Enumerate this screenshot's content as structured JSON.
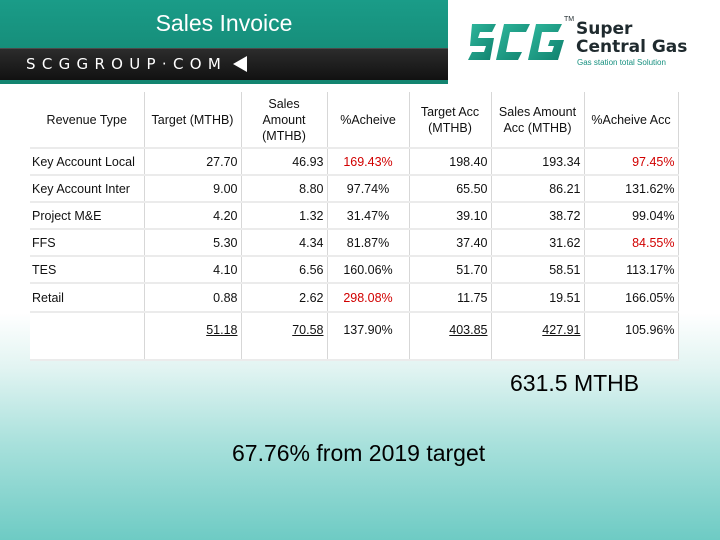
{
  "header": {
    "title": "Sales Invoice",
    "brand": "SCGGROUP·COM",
    "accent": "#1a9c88"
  },
  "logo": {
    "mark": "SCG",
    "tm": "TM",
    "name_line1": "Super",
    "name_line2": "Central Gas",
    "tagline": "Gas station total Solution"
  },
  "table": {
    "headers": [
      "Revenue Type",
      "Target (MTHB)",
      "Sales Amount (MTHB)",
      "%Acheive",
      "Target Acc (MTHB)",
      "Sales Amount Acc (MTHB)",
      "%Acheive Acc"
    ],
    "rows": [
      [
        "Key Account Local",
        "27.70",
        "46.93",
        "169.43%",
        "198.40",
        "193.34",
        "97.45%"
      ],
      [
        "Key Account Inter",
        "9.00",
        "8.80",
        "97.74%",
        "65.50",
        "86.21",
        "131.62%"
      ],
      [
        "Project M&E",
        "4.20",
        "1.32",
        "31.47%",
        "39.10",
        "38.72",
        "99.04%"
      ],
      [
        "FFS",
        "5.30",
        "4.34",
        "81.87%",
        "37.40",
        "31.62",
        "84.55%"
      ],
      [
        "TES",
        "4.10",
        "6.56",
        "160.06%",
        "51.70",
        "58.51",
        "113.17%"
      ],
      [
        "Retail",
        "0.88",
        "2.62",
        "298.08%",
        "11.75",
        "19.51",
        "166.05%"
      ]
    ],
    "total": [
      "",
      "51.18",
      "70.58",
      "137.90%",
      "403.85",
      "427.91",
      "105.96%"
    ],
    "highlight_color": "#d10000"
  },
  "summary": {
    "total_text": "631.5 MTHB",
    "target_text": "67.76% from 2019 target"
  }
}
